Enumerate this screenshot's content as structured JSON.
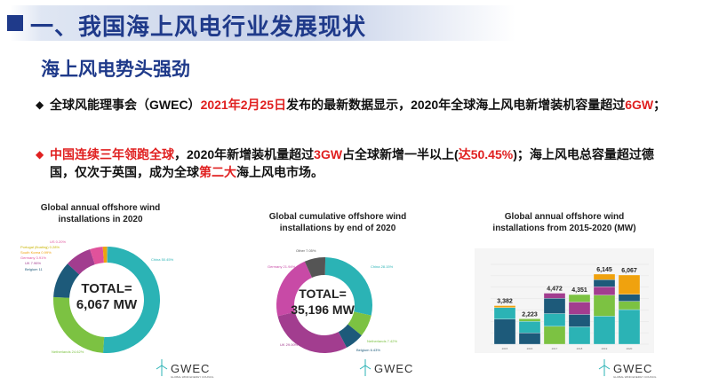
{
  "header": {
    "title": "一、我国海上风电行业发展现状"
  },
  "subtitle": "海上风电势头强劲",
  "bullets": [
    {
      "marker": "◆",
      "parts": [
        {
          "text": "全球风能理事会（GWEC）",
          "red": false
        },
        {
          "text": "2021年2月25日",
          "red": true
        },
        {
          "text": "发布的最新数据显示，2020年全球海上风电新增装机容量超过",
          "red": false
        },
        {
          "text": "6GW",
          "red": true
        },
        {
          "text": "；",
          "red": false
        }
      ]
    },
    {
      "marker": "◆",
      "parts": [
        {
          "text": "中国连续三年领跑全球",
          "red": true
        },
        {
          "text": "，2020年新增装机量超过",
          "red": false
        },
        {
          "text": "3GW",
          "red": true
        },
        {
          "text": "占全球新增一半以上(",
          "red": false
        },
        {
          "text": "达50.45%",
          "red": true
        },
        {
          "text": ")；海上风电总容量超过德国，仅次于英国，成为全球",
          "red": false
        },
        {
          "text": "第二大",
          "red": true
        },
        {
          "text": "海上风电市场。",
          "red": false
        }
      ]
    }
  ],
  "colors": {
    "header_blue": "#1f3a8a",
    "red": "#e02020",
    "teal": "#2bb3b5",
    "green": "#7cc242",
    "purple": "#a23d8f",
    "navy": "#1d5a7a",
    "orange": "#f0a20e",
    "grey": "#555555"
  },
  "charts": {
    "annual_2020": {
      "title_line1": "Global annual offshore wind",
      "title_line2": "installations in 2020",
      "center_line1": "TOTAL=",
      "center_line2": "6,067 MW",
      "labels": {
        "us": "US 0.20%",
        "portugal": "Portugal (floating) 0.28%",
        "korea": "South Korea 0.99%",
        "germany": "Germany 3.91%",
        "uk": "UK 7.96%",
        "belgium": "Belgium 11",
        "china": "China 50.45%",
        "netherlands": "Netherlands 24.62%"
      },
      "gwec": "GWEC",
      "gwec_sub": "GLOBAL WIND ENERGY COUNCIL"
    },
    "cumulative_2020": {
      "title_line1": "Global cumulative offshore wind",
      "title_line2": "installations by end of 2020",
      "center_line1": "TOTAL=",
      "center_line2": "35,196 MW",
      "labels": {
        "other": "Other 7.05%",
        "germany": "Germany 21.94%",
        "china": "China 28.15%",
        "uk": "UK 29.00%",
        "netherlands": "Netherlands 7.42%",
        "belgium": "Belgium 6.43%"
      }
    },
    "annual_2015_2020": {
      "title_line1": "Global annual offshore wind",
      "title_line2": "installations from 2015-2020 (MW)",
      "gwec": "GWEC",
      "gwec_sub": "GLOBAL WIND ENERGY COUNCIL"
    }
  },
  "chart_data": [
    {
      "type": "pie",
      "title": "Global annual offshore wind installations in 2020",
      "labels": [
        "China",
        "Netherlands",
        "Belgium",
        "UK",
        "Germany",
        "South Korea",
        "Portugal (floating)",
        "US"
      ],
      "values": [
        50.45,
        24.62,
        11,
        7.96,
        3.91,
        0.99,
        0.28,
        0.2
      ],
      "colors": [
        "#2bb3b5",
        "#7cc242",
        "#1d5a7a",
        "#a23d8f",
        "#e0529b",
        "#f0a20e",
        "#c8b400",
        "#9aa0a6"
      ]
    },
    {
      "type": "pie",
      "title": "Global cumulative offshore wind installations by end of 2020",
      "labels": [
        "China",
        "Netherlands",
        "Belgium",
        "UK",
        "Germany",
        "Other"
      ],
      "values": [
        28.15,
        7.42,
        6.43,
        29.0,
        21.94,
        7.05
      ],
      "colors": [
        "#2bb3b5",
        "#7cc242",
        "#1d5a7a",
        "#a23d8f",
        "#c84aa6",
        "#555555"
      ]
    },
    {
      "type": "bar",
      "title": "Global annual offshore wind installations from 2015-2020 (MW)",
      "categories": [
        "2015",
        "2016",
        "2017",
        "2018",
        "2019",
        "2020"
      ],
      "values": [
        3382,
        2223,
        4472,
        4351,
        6145,
        6067
      ],
      "value_labels": [
        "3,382",
        "2,223",
        "4,472",
        "4,351",
        "6,145",
        "6,067"
      ],
      "ylim": [
        0,
        7000
      ],
      "segments": [
        {
          "colors": [
            "#1d5a7a",
            "#2bb3b5",
            "#f0a20e"
          ],
          "shares": [
            0.65,
            0.3,
            0.05
          ]
        },
        {
          "colors": [
            "#1d5a7a",
            "#2bb3b5",
            "#7cc242"
          ],
          "shares": [
            0.45,
            0.45,
            0.1
          ]
        },
        {
          "colors": [
            "#7cc242",
            "#2bb3b5",
            "#1d5a7a",
            "#a23d8f"
          ],
          "shares": [
            0.35,
            0.25,
            0.3,
            0.1
          ]
        },
        {
          "colors": [
            "#2bb3b5",
            "#1d5a7a",
            "#a23d8f",
            "#7cc242"
          ],
          "shares": [
            0.35,
            0.25,
            0.25,
            0.15
          ]
        },
        {
          "colors": [
            "#2bb3b5",
            "#7cc242",
            "#a23d8f",
            "#1d5a7a",
            "#f0a20e"
          ],
          "shares": [
            0.4,
            0.3,
            0.12,
            0.1,
            0.08
          ]
        },
        {
          "colors": [
            "#2bb3b5",
            "#7cc242",
            "#1d5a7a",
            "#f0a20e"
          ],
          "shares": [
            0.5,
            0.12,
            0.1,
            0.28
          ]
        }
      ]
    }
  ]
}
